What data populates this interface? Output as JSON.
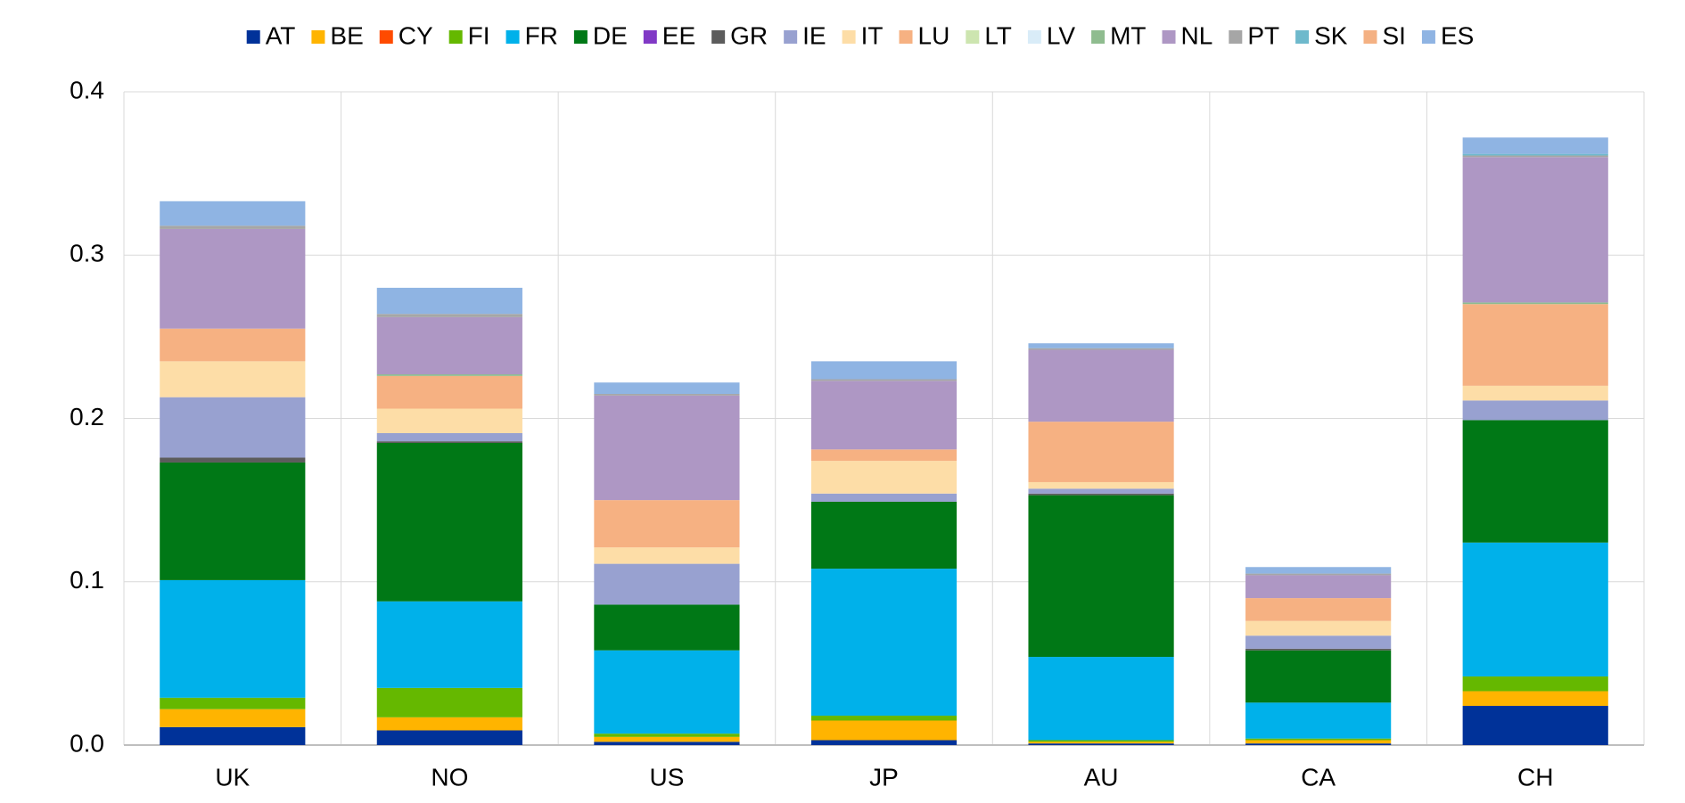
{
  "chart_data": {
    "type": "stacked_bar",
    "categories": [
      "UK",
      "NO",
      "US",
      "JP",
      "AU",
      "CA",
      "CH"
    ],
    "series": [
      {
        "name": "AT",
        "color": "#003299",
        "values": [
          0.011,
          0.009,
          0.002,
          0.003,
          0.001,
          0.001,
          0.024
        ]
      },
      {
        "name": "BE",
        "color": "#ffb400",
        "values": [
          0.011,
          0.008,
          0.003,
          0.012,
          0.001,
          0.002,
          0.009
        ]
      },
      {
        "name": "CY",
        "color": "#ff4b00",
        "values": [
          0,
          0,
          0,
          0,
          0,
          0,
          0
        ]
      },
      {
        "name": "FI",
        "color": "#65b800",
        "values": [
          0.007,
          0.018,
          0.002,
          0.003,
          0.001,
          0.001,
          0.009
        ]
      },
      {
        "name": "FR",
        "color": "#00b1ea",
        "values": [
          0.072,
          0.053,
          0.051,
          0.09,
          0.051,
          0.022,
          0.082
        ]
      },
      {
        "name": "DE",
        "color": "#007816",
        "values": [
          0.072,
          0.097,
          0.028,
          0.041,
          0.099,
          0.032,
          0.075
        ]
      },
      {
        "name": "EE",
        "color": "#8139c6",
        "values": [
          0,
          0,
          0,
          0,
          0,
          0,
          0
        ]
      },
      {
        "name": "GR",
        "color": "#5c5c5c",
        "values": [
          0.003,
          0.001,
          0,
          0,
          0.001,
          0.001,
          0
        ]
      },
      {
        "name": "IE",
        "color": "#98a1d0",
        "values": [
          0.037,
          0.005,
          0.025,
          0.005,
          0.003,
          0.008,
          0.012
        ]
      },
      {
        "name": "IT",
        "color": "#fddda7",
        "values": [
          0.022,
          0.015,
          0.01,
          0.02,
          0.004,
          0.009,
          0.009
        ]
      },
      {
        "name": "LU",
        "color": "#f6b182",
        "values": [
          0.02,
          0.02,
          0.029,
          0.007,
          0.037,
          0.014,
          0.05
        ]
      },
      {
        "name": "LT",
        "color": "#cde5b0",
        "values": [
          0,
          0,
          0,
          0,
          0,
          0,
          0
        ]
      },
      {
        "name": "LV",
        "color": "#d9ecf8",
        "values": [
          0,
          0,
          0,
          0,
          0,
          0,
          0
        ]
      },
      {
        "name": "MT",
        "color": "#8fbc8f",
        "values": [
          0,
          0.001,
          0,
          0,
          0,
          0,
          0.001
        ]
      },
      {
        "name": "NL",
        "color": "#ae97c4",
        "values": [
          0.061,
          0.035,
          0.064,
          0.042,
          0.044,
          0.014,
          0.089
        ]
      },
      {
        "name": "PT",
        "color": "#a6a6a6",
        "values": [
          0.002,
          0.002,
          0.001,
          0.001,
          0.001,
          0.001,
          0.001
        ]
      },
      {
        "name": "SK",
        "color": "#6eb9cc",
        "values": [
          0,
          0,
          0,
          0,
          0,
          0,
          0.001
        ]
      },
      {
        "name": "SI",
        "color": "#f4b183",
        "values": [
          0,
          0,
          0,
          0,
          0,
          0,
          0
        ]
      },
      {
        "name": "ES",
        "color": "#8fb4e3",
        "values": [
          0.015,
          0.016,
          0.007,
          0.011,
          0.003,
          0.004,
          0.01
        ]
      }
    ],
    "ylim": [
      0,
      0.4
    ],
    "yticks": [
      {
        "value": 0,
        "label": "0.0"
      },
      0.1,
      0.2,
      0.3,
      0.4
    ],
    "grid": true
  }
}
